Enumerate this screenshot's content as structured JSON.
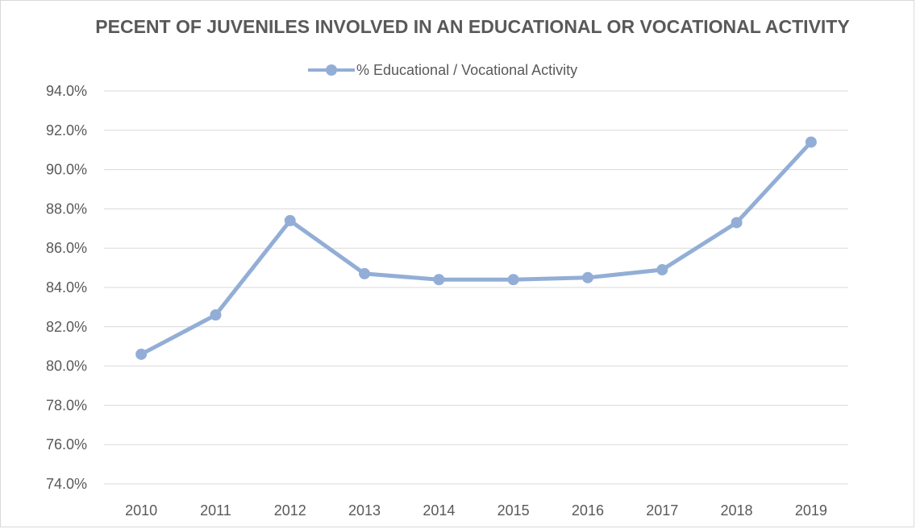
{
  "chart_data": {
    "type": "line",
    "title": "PECENT OF JUVENILES INVOLVED IN AN EDUCATIONAL OR VOCATIONAL ACTIVITY",
    "xlabel": "",
    "ylabel": "",
    "categories": [
      "2010",
      "2011",
      "2012",
      "2013",
      "2014",
      "2015",
      "2016",
      "2017",
      "2018",
      "2019"
    ],
    "series": [
      {
        "name": "% Educational / Vocational Activity",
        "values": [
          80.6,
          82.6,
          87.4,
          84.7,
          84.4,
          84.4,
          84.5,
          84.9,
          87.3,
          91.4
        ],
        "color": "#93aed6"
      }
    ],
    "ylim": [
      74,
      94
    ],
    "ytick_step": 2,
    "ytick_labels": [
      "74.0%",
      "76.0%",
      "78.0%",
      "80.0%",
      "82.0%",
      "84.0%",
      "86.0%",
      "88.0%",
      "90.0%",
      "92.0%",
      "94.0%"
    ],
    "grid": "horizontal",
    "legend_position": "top-center",
    "gridline_color": "#d9d9d9",
    "text_color": "#595959"
  }
}
